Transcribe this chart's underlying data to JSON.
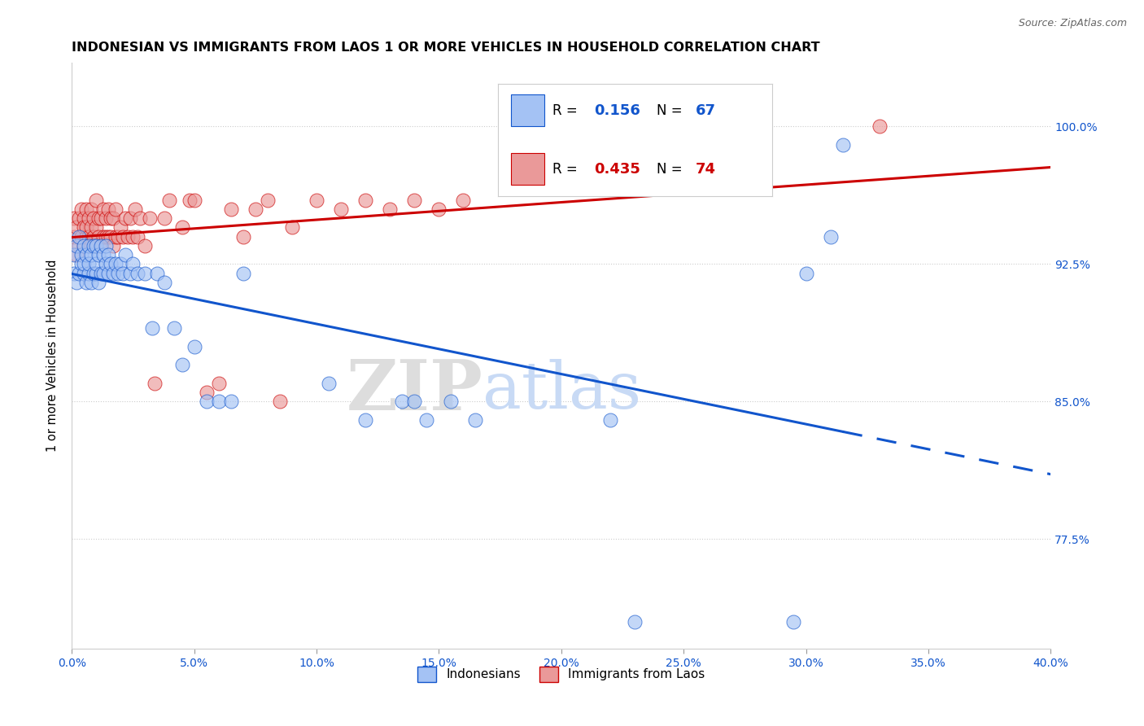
{
  "title": "INDONESIAN VS IMMIGRANTS FROM LAOS 1 OR MORE VEHICLES IN HOUSEHOLD CORRELATION CHART",
  "source": "Source: ZipAtlas.com",
  "ylabel": "1 or more Vehicles in Household",
  "ylabel_ticks": [
    "100.0%",
    "92.5%",
    "85.0%",
    "77.5%"
  ],
  "ylabel_values": [
    1.0,
    0.925,
    0.85,
    0.775
  ],
  "xmin": 0.0,
  "xmax": 0.4,
  "ymin": 0.715,
  "ymax": 1.035,
  "legend_indonesian": "Indonesians",
  "legend_laos": "Immigrants from Laos",
  "R_indonesian": 0.156,
  "N_indonesian": 67,
  "R_laos": 0.435,
  "N_laos": 74,
  "color_indonesian": "#a4c2f4",
  "color_laos": "#ea9999",
  "color_indonesian_line": "#1155cc",
  "color_laos_line": "#cc0000",
  "watermark_zip": "ZIP",
  "watermark_atlas": "atlas",
  "indonesian_x": [
    0.001,
    0.001,
    0.002,
    0.002,
    0.003,
    0.003,
    0.004,
    0.004,
    0.005,
    0.005,
    0.005,
    0.006,
    0.006,
    0.007,
    0.007,
    0.007,
    0.008,
    0.008,
    0.009,
    0.009,
    0.01,
    0.01,
    0.01,
    0.011,
    0.011,
    0.012,
    0.012,
    0.013,
    0.013,
    0.014,
    0.014,
    0.015,
    0.015,
    0.016,
    0.017,
    0.018,
    0.019,
    0.02,
    0.021,
    0.022,
    0.024,
    0.025,
    0.027,
    0.03,
    0.033,
    0.035,
    0.038,
    0.042,
    0.045,
    0.05,
    0.055,
    0.06,
    0.065,
    0.07,
    0.105,
    0.12,
    0.135,
    0.14,
    0.145,
    0.155,
    0.165,
    0.22,
    0.23,
    0.295,
    0.3,
    0.31,
    0.315
  ],
  "indonesian_y": [
    0.92,
    0.93,
    0.915,
    0.935,
    0.92,
    0.94,
    0.925,
    0.93,
    0.92,
    0.935,
    0.925,
    0.915,
    0.93,
    0.92,
    0.935,
    0.925,
    0.915,
    0.93,
    0.92,
    0.935,
    0.92,
    0.935,
    0.925,
    0.915,
    0.93,
    0.92,
    0.935,
    0.92,
    0.93,
    0.925,
    0.935,
    0.92,
    0.93,
    0.925,
    0.92,
    0.925,
    0.92,
    0.925,
    0.92,
    0.93,
    0.92,
    0.925,
    0.92,
    0.92,
    0.89,
    0.92,
    0.915,
    0.89,
    0.87,
    0.88,
    0.85,
    0.85,
    0.85,
    0.92,
    0.86,
    0.84,
    0.85,
    0.85,
    0.84,
    0.85,
    0.84,
    0.84,
    0.73,
    0.73,
    0.92,
    0.94,
    0.99
  ],
  "laos_x": [
    0.001,
    0.001,
    0.002,
    0.002,
    0.003,
    0.003,
    0.004,
    0.004,
    0.005,
    0.005,
    0.005,
    0.006,
    0.006,
    0.006,
    0.007,
    0.007,
    0.008,
    0.008,
    0.008,
    0.009,
    0.009,
    0.01,
    0.01,
    0.01,
    0.011,
    0.011,
    0.012,
    0.012,
    0.013,
    0.013,
    0.014,
    0.014,
    0.015,
    0.015,
    0.016,
    0.016,
    0.017,
    0.017,
    0.018,
    0.018,
    0.019,
    0.02,
    0.021,
    0.022,
    0.023,
    0.024,
    0.025,
    0.026,
    0.027,
    0.028,
    0.03,
    0.032,
    0.034,
    0.038,
    0.04,
    0.045,
    0.048,
    0.05,
    0.055,
    0.06,
    0.065,
    0.07,
    0.075,
    0.08,
    0.085,
    0.09,
    0.1,
    0.11,
    0.12,
    0.13,
    0.14,
    0.15,
    0.16,
    0.33
  ],
  "laos_y": [
    0.94,
    0.95,
    0.93,
    0.945,
    0.935,
    0.95,
    0.94,
    0.955,
    0.935,
    0.95,
    0.945,
    0.94,
    0.955,
    0.945,
    0.94,
    0.95,
    0.935,
    0.945,
    0.955,
    0.94,
    0.95,
    0.935,
    0.945,
    0.96,
    0.94,
    0.95,
    0.935,
    0.95,
    0.94,
    0.955,
    0.94,
    0.95,
    0.94,
    0.955,
    0.94,
    0.95,
    0.935,
    0.95,
    0.94,
    0.955,
    0.94,
    0.945,
    0.94,
    0.95,
    0.94,
    0.95,
    0.94,
    0.955,
    0.94,
    0.95,
    0.935,
    0.95,
    0.86,
    0.95,
    0.96,
    0.945,
    0.96,
    0.96,
    0.855,
    0.86,
    0.955,
    0.94,
    0.955,
    0.96,
    0.85,
    0.945,
    0.96,
    0.955,
    0.96,
    0.955,
    0.96,
    0.955,
    0.96,
    1.0
  ]
}
